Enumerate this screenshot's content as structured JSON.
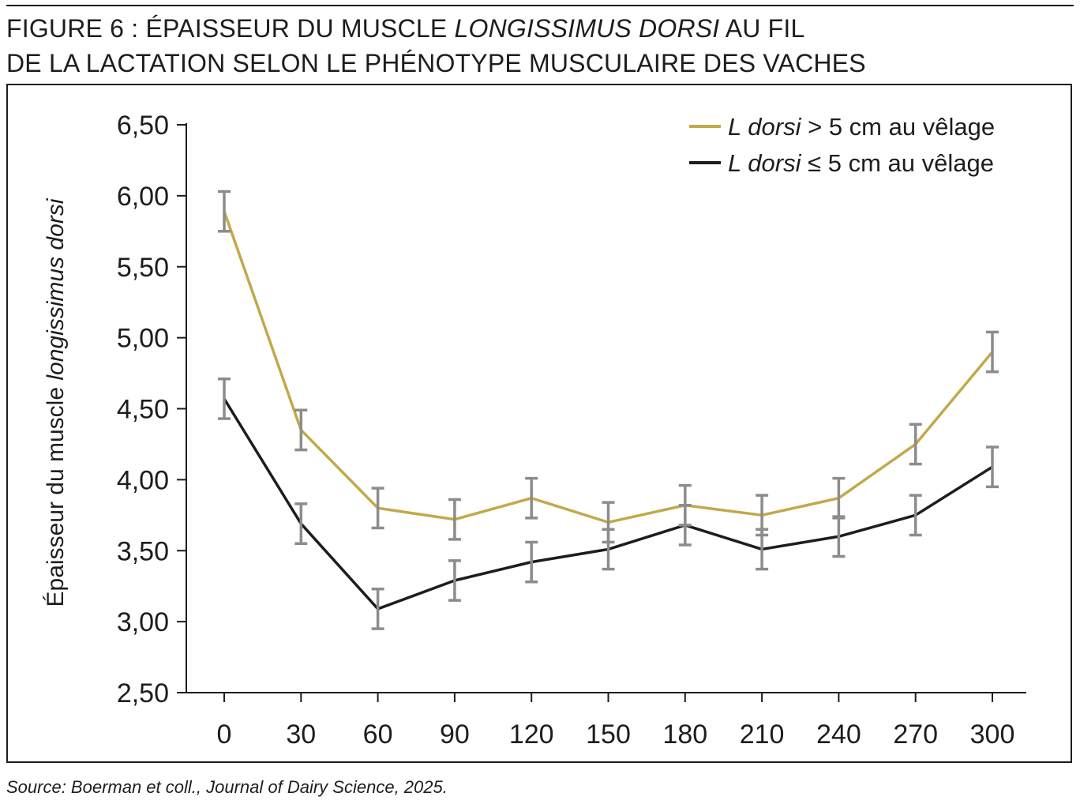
{
  "figure": {
    "title_line1_prefix": "FIGURE 6 : ÉPAISSEUR DU MUSCLE ",
    "title_line1_italic": "LONGISSIMUS DORSI",
    "title_line1_suffix": " AU FIL",
    "title_line2": "DE LA LACTATION SELON LE PHÉNOTYPE MUSCULAIRE DES VACHES",
    "source": "Source: Boerman et coll., Journal of Dairy Science, 2025."
  },
  "chart_data": {
    "type": "line",
    "title": "",
    "xlabel": "",
    "ylabel_prefix": "Épaisseur du  muscle ",
    "ylabel_italic": "longissimus dorsi",
    "x": [
      0,
      30,
      60,
      90,
      120,
      150,
      180,
      210,
      240,
      270,
      300
    ],
    "x_tick_labels": [
      "0",
      "30",
      "60",
      "90",
      "120",
      "150",
      "180",
      "210",
      "240",
      "270",
      "300"
    ],
    "y_ticks": [
      2.5,
      3.0,
      3.5,
      4.0,
      4.5,
      5.0,
      5.5,
      6.0,
      6.5
    ],
    "y_tick_labels": [
      "2,50",
      "3,00",
      "3,50",
      "4,00",
      "4,50",
      "5,00",
      "5,50",
      "6,00",
      "6,50"
    ],
    "ylim": [
      2.5,
      6.5
    ],
    "grid": false,
    "legend_position": "top-right",
    "error_bar_color": "#8c8c8c",
    "series": [
      {
        "name_italic": "L dorsi",
        "name_rest": " > 5 cm au vêlage",
        "color": "#c2a94a",
        "values": [
          5.89,
          4.35,
          3.8,
          3.72,
          3.87,
          3.7,
          3.82,
          3.75,
          3.87,
          4.25,
          4.9
        ],
        "errors": [
          0.14,
          0.14,
          0.14,
          0.14,
          0.14,
          0.14,
          0.14,
          0.14,
          0.14,
          0.14,
          0.14
        ]
      },
      {
        "name_italic": "L dorsi",
        "name_rest": " ≤ 5 cm au vêlage",
        "color": "#1d1d1b",
        "values": [
          4.57,
          3.69,
          3.09,
          3.29,
          3.42,
          3.51,
          3.68,
          3.51,
          3.6,
          3.75,
          4.09
        ],
        "errors": [
          0.14,
          0.14,
          0.14,
          0.14,
          0.14,
          0.14,
          0.14,
          0.14,
          0.14,
          0.14,
          0.14
        ]
      }
    ]
  }
}
